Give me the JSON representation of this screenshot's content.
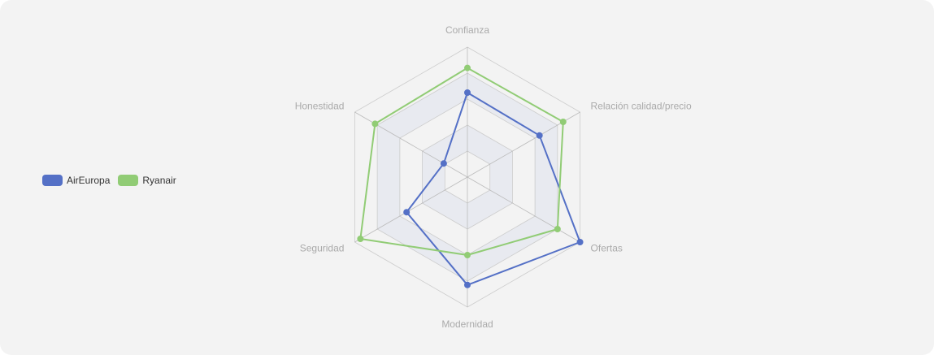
{
  "chart_data": {
    "type": "radar",
    "indicators": [
      "Confianza",
      "Relación calidad/precio",
      "Ofertas",
      "Modernidad",
      "Seguridad",
      "Honestidad"
    ],
    "max": 10,
    "series": [
      {
        "name": "AirEuropa",
        "color": "#5470c6",
        "values": [
          6.5,
          6.4,
          10,
          8.3,
          5.4,
          2.1
        ]
      },
      {
        "name": "Ryanair",
        "color": "#91cc75",
        "values": [
          8.4,
          8.5,
          8.0,
          6.0,
          9.5,
          8.2
        ]
      }
    ],
    "legend_position": "left-middle",
    "split_area_colors": [
      "#f3f3f3",
      "#e8eaf0"
    ],
    "grid_line_color": "#cccccc",
    "axis_line_color": "#bbbbbb"
  }
}
